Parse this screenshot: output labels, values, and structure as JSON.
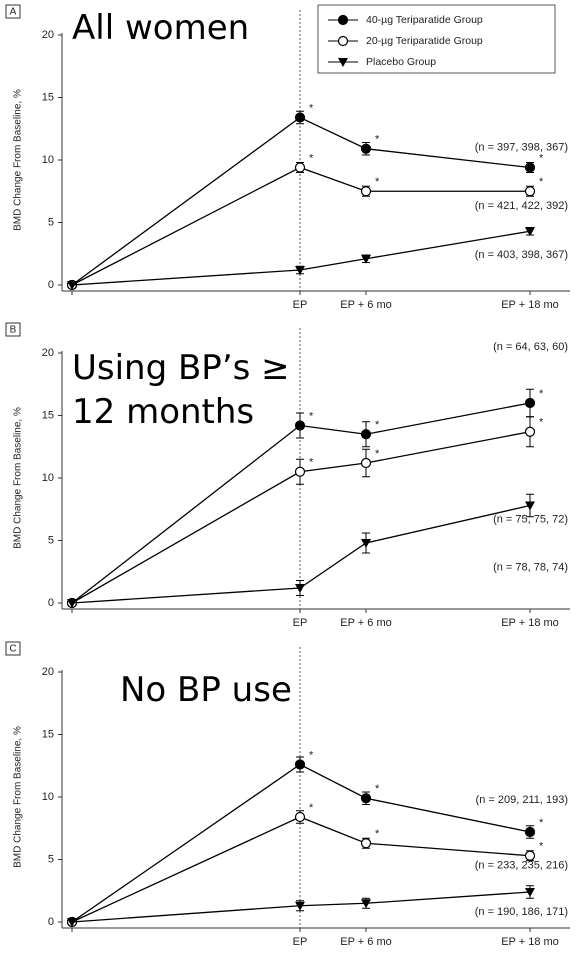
{
  "chart_data": [
    {
      "type": "line",
      "panel": "A",
      "title": "All women",
      "y_label": "BMD Change From Baseline, %",
      "categories": [
        null,
        "EP",
        "EP + 6 mo",
        "EP + 18 mo"
      ],
      "ylim": [
        0,
        20
      ],
      "yticks": [
        0,
        5,
        10,
        15,
        20
      ],
      "legend": "top-right",
      "series": [
        {
          "name": "40-µg Teriparatide Group",
          "color": "#000000",
          "marker": "filled-circle",
          "values": [
            0,
            13.4,
            10.9,
            9.4
          ],
          "errors": [
            null,
            0.5,
            0.5,
            0.4
          ],
          "point_labels": [
            null,
            "*",
            "*",
            "*"
          ],
          "annotation": "(n = 397, 398, 367)"
        },
        {
          "name": "20-µg Teriparatide Group",
          "color": "#000000",
          "marker": "open-circle",
          "values": [
            0,
            9.4,
            7.5,
            7.5
          ],
          "errors": [
            null,
            0.4,
            0.4,
            0.4
          ],
          "point_labels": [
            null,
            "*",
            "*",
            "*"
          ],
          "annotation": "(n = 421, 422, 392)"
        },
        {
          "name": "Placebo Group",
          "color": "#000000",
          "marker": "triangle-down",
          "values": [
            0,
            1.2,
            2.1,
            4.3
          ],
          "errors": [
            null,
            0.3,
            0.3,
            0.3
          ],
          "annotation": "(n = 403, 398, 367)"
        }
      ]
    },
    {
      "type": "line",
      "panel": "B",
      "title": "Using BP’s ≥ 12 months",
      "y_label": "BMD Change From Baseline, %",
      "categories": [
        null,
        "EP",
        "EP + 6 mo",
        "EP + 18 mo"
      ],
      "ylim": [
        0,
        20
      ],
      "yticks": [
        0,
        5,
        10,
        15,
        20
      ],
      "series": [
        {
          "name": "40-µg Teriparatide Group",
          "color": "#000000",
          "marker": "filled-circle",
          "values": [
            0,
            14.2,
            13.5,
            16.0
          ],
          "errors": [
            null,
            1.0,
            1.0,
            1.1
          ],
          "point_labels": [
            null,
            "*",
            "*",
            "*"
          ],
          "annotation": "(n = 64, 63, 60)"
        },
        {
          "name": "20-µg Teriparatide Group",
          "color": "#000000",
          "marker": "open-circle",
          "values": [
            0,
            10.5,
            11.2,
            13.7
          ],
          "errors": [
            null,
            1.0,
            1.1,
            1.2
          ],
          "point_labels": [
            null,
            "*",
            "*",
            "*"
          ],
          "annotation": "(n = 75, 75, 72)"
        },
        {
          "name": "Placebo Group",
          "color": "#000000",
          "marker": "triangle-down",
          "values": [
            0,
            1.2,
            4.8,
            7.8
          ],
          "errors": [
            null,
            0.6,
            0.8,
            0.9
          ],
          "annotation": "(n = 78, 78, 74)"
        }
      ]
    },
    {
      "type": "line",
      "panel": "C",
      "title": "No BP use",
      "y_label": "BMD Change From Baseline, %",
      "categories": [
        null,
        "EP",
        "EP + 6 mo",
        "EP + 18 mo"
      ],
      "ylim": [
        0,
        20
      ],
      "yticks": [
        0,
        5,
        10,
        15,
        20
      ],
      "series": [
        {
          "name": "40-µg Teriparatide Group",
          "color": "#000000",
          "marker": "filled-circle",
          "values": [
            0,
            12.6,
            9.9,
            7.2
          ],
          "errors": [
            null,
            0.6,
            0.5,
            0.5
          ],
          "point_labels": [
            null,
            "*",
            "*",
            "*"
          ],
          "annotation": "(n = 209, 211, 193)"
        },
        {
          "name": "20-µg Teriparatide Group",
          "color": "#000000",
          "marker": "open-circle",
          "values": [
            0,
            8.4,
            6.3,
            5.3
          ],
          "errors": [
            null,
            0.5,
            0.4,
            0.4
          ],
          "point_labels": [
            null,
            "*",
            "*",
            "*"
          ],
          "annotation": "(n = 233, 235, 216)"
        },
        {
          "name": "Placebo Group",
          "color": "#000000",
          "marker": "triangle-down",
          "values": [
            0,
            1.3,
            1.5,
            2.4
          ],
          "errors": [
            null,
            0.4,
            0.4,
            0.5
          ],
          "annotation": "(n = 190, 186, 171)"
        }
      ]
    }
  ]
}
